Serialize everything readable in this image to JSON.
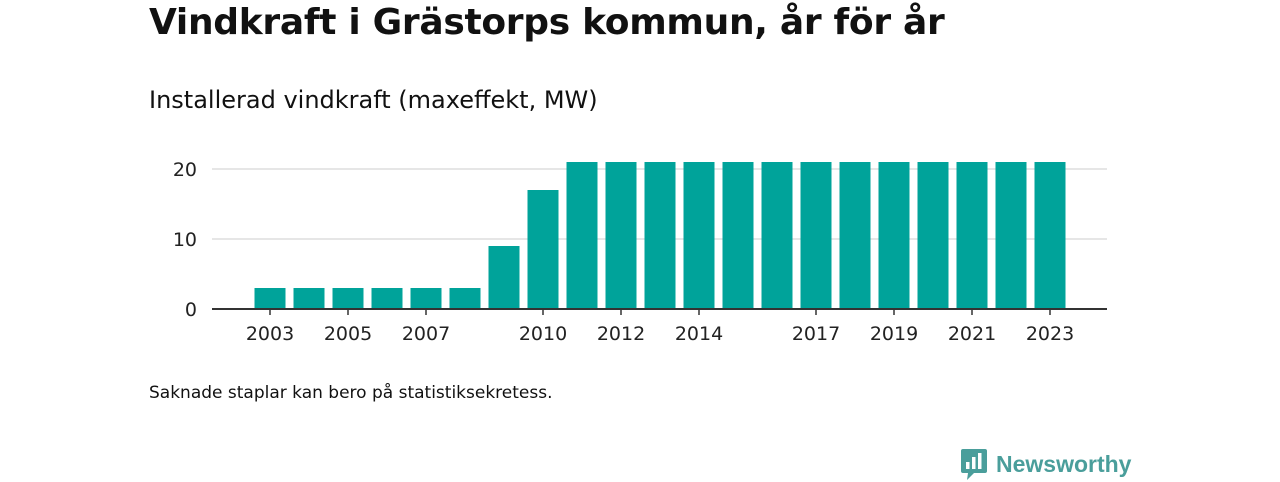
{
  "title": "Vindkraft i Grästorps kommun, år för år",
  "subtitle": "Installerad vindkraft (maxeffekt, MW)",
  "note": "Saknade staplar kan bero på statistiksekretess.",
  "brand": {
    "name": "Newsworthy",
    "logo_icon": "bar-chart-speech-bubble-icon",
    "color": "#4a9e9b"
  },
  "colors": {
    "bar": "#00a39a",
    "grid": "#dddddd",
    "axis": "#333333"
  },
  "chart_data": {
    "type": "bar",
    "categories": [
      "2003",
      "2004",
      "2005",
      "2006",
      "2007",
      "2008",
      "2009",
      "2010",
      "2011",
      "2012",
      "2013",
      "2014",
      "2015",
      "2016",
      "2017",
      "2018",
      "2019",
      "2020",
      "2021",
      "2022",
      "2023"
    ],
    "values": [
      3,
      3,
      3,
      3,
      3,
      3,
      9,
      17,
      21,
      21,
      21,
      21,
      21,
      21,
      21,
      21,
      21,
      21,
      21,
      21,
      21
    ],
    "x_tick_labels": [
      "2003",
      "2005",
      "2007",
      "2010",
      "2012",
      "2014",
      "2017",
      "2019",
      "2021",
      "2023"
    ],
    "y_ticks": [
      0,
      10,
      20
    ],
    "ylim": [
      0,
      21
    ],
    "title": "Vindkraft i Grästorps kommun, år för år",
    "subtitle": "Installerad vindkraft (maxeffekt, MW)",
    "xlabel": "",
    "ylabel": "",
    "grid": true,
    "legend": "none"
  }
}
